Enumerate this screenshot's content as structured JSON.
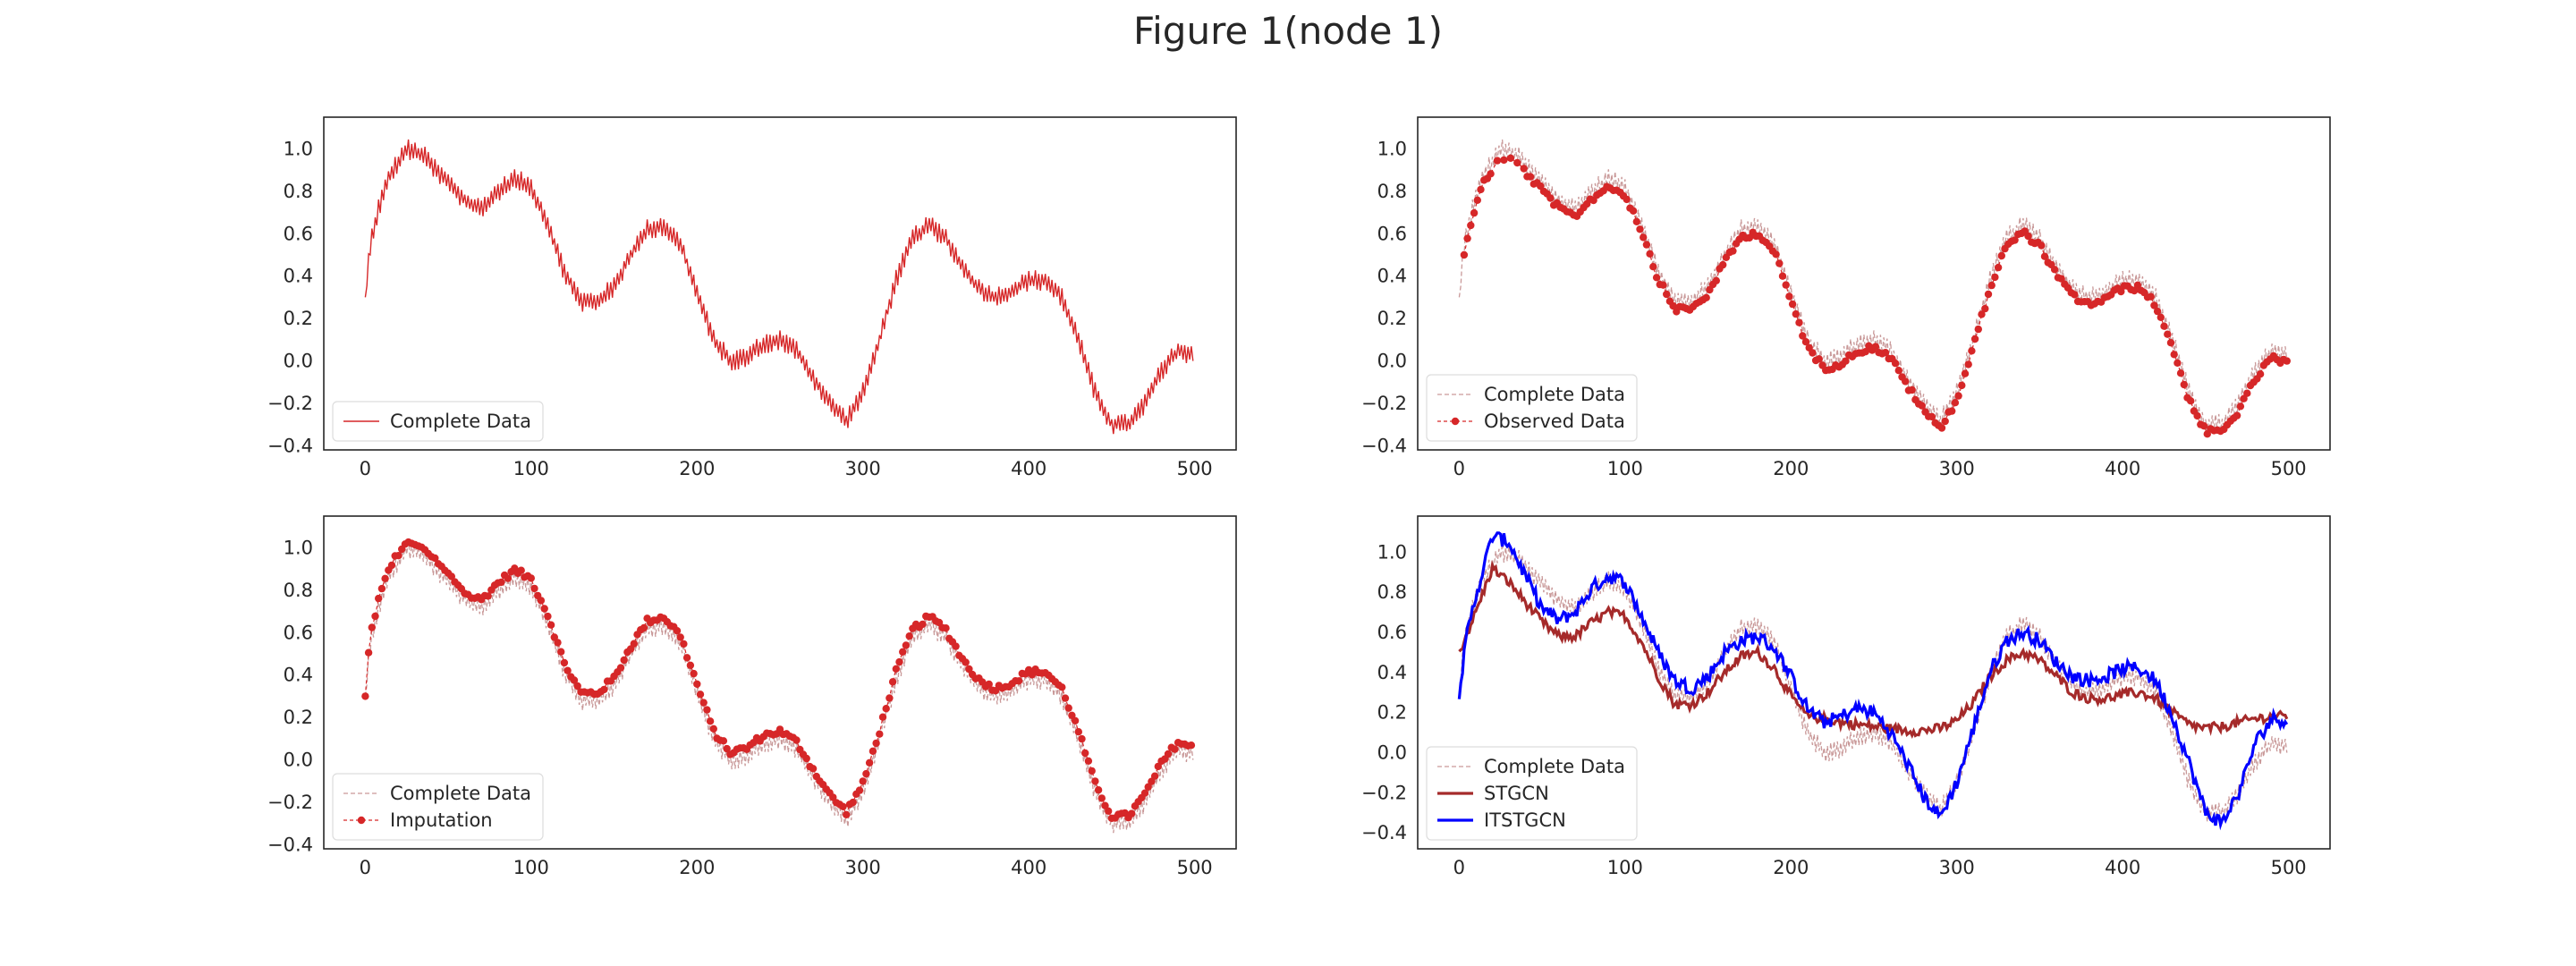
{
  "figure_title": "Figure 1(node 1)",
  "colors": {
    "complete_red": "#d62728",
    "observed_red": "#d62728",
    "imputation_red": "#d62728",
    "complete_dashed": "#c99999",
    "stgcn": "#a52a2a",
    "itstgcn": "#0000ff",
    "axes": "#262626"
  },
  "chart_data": [
    {
      "type": "line",
      "panel": "top-left",
      "xlim": [
        -25,
        525
      ],
      "ylim": [
        -0.42,
        1.15
      ],
      "xticks": [
        0,
        100,
        200,
        300,
        400,
        500
      ],
      "yticks": [
        -0.4,
        -0.2,
        0.0,
        0.2,
        0.4,
        0.6,
        0.8,
        1.0
      ],
      "xtick_labels": [
        "0",
        "100",
        "200",
        "300",
        "400",
        "500"
      ],
      "ytick_labels": [
        "−0.4",
        "−0.2",
        "0.0",
        "0.2",
        "0.4",
        "0.6",
        "0.8",
        "1.0"
      ],
      "legend_position": "lower-left",
      "series": [
        {
          "name": "Complete Data",
          "style": "solid-thin",
          "role": "complete"
        }
      ]
    },
    {
      "type": "line",
      "panel": "top-right",
      "xlim": [
        -25,
        525
      ],
      "ylim": [
        -0.42,
        1.15
      ],
      "xticks": [
        0,
        100,
        200,
        300,
        400,
        500
      ],
      "yticks": [
        -0.4,
        -0.2,
        0.0,
        0.2,
        0.4,
        0.6,
        0.8,
        1.0
      ],
      "xtick_labels": [
        "0",
        "100",
        "200",
        "300",
        "400",
        "500"
      ],
      "ytick_labels": [
        "−0.4",
        "−0.2",
        "0.0",
        "0.2",
        "0.4",
        "0.6",
        "0.8",
        "1.0"
      ],
      "legend_position": "lower-left",
      "series": [
        {
          "name": "Complete Data",
          "style": "dashed-light",
          "role": "complete"
        },
        {
          "name": "Observed Data",
          "style": "markers-dashed",
          "role": "observed"
        }
      ]
    },
    {
      "type": "line",
      "panel": "bottom-left",
      "xlim": [
        -25,
        525
      ],
      "ylim": [
        -0.42,
        1.15
      ],
      "xticks": [
        0,
        100,
        200,
        300,
        400,
        500
      ],
      "yticks": [
        -0.4,
        -0.2,
        0.0,
        0.2,
        0.4,
        0.6,
        0.8,
        1.0
      ],
      "xtick_labels": [
        "0",
        "100",
        "200",
        "300",
        "400",
        "500"
      ],
      "ytick_labels": [
        "−0.4",
        "−0.2",
        "0.0",
        "0.2",
        "0.4",
        "0.6",
        "0.8",
        "1.0"
      ],
      "legend_position": "lower-left",
      "series": [
        {
          "name": "Complete Data",
          "style": "dashed-light",
          "role": "complete"
        },
        {
          "name": "Imputation",
          "style": "markers-dashed",
          "role": "imputation"
        }
      ]
    },
    {
      "type": "line",
      "panel": "bottom-right",
      "xlim": [
        -25,
        525
      ],
      "ylim": [
        -0.48,
        1.18
      ],
      "xticks": [
        0,
        100,
        200,
        300,
        400,
        500
      ],
      "yticks": [
        -0.4,
        -0.2,
        0.0,
        0.2,
        0.4,
        0.6,
        0.8,
        1.0
      ],
      "xtick_labels": [
        "0",
        "100",
        "200",
        "300",
        "400",
        "500"
      ],
      "ytick_labels": [
        "−0.4",
        "−0.2",
        "0.0",
        "0.2",
        "0.4",
        "0.6",
        "0.8",
        "1.0"
      ],
      "legend_position": "lower-left",
      "series": [
        {
          "name": "Complete Data",
          "style": "dashed-light",
          "role": "complete"
        },
        {
          "name": "STGCN",
          "style": "solid-thick",
          "role": "stgcn"
        },
        {
          "name": "ITSTGCN",
          "style": "solid-thick",
          "role": "itstgcn"
        }
      ]
    }
  ],
  "signal": {
    "x_max": 499,
    "complete_keypoints": [
      [
        0,
        0.3
      ],
      [
        3,
        0.55
      ],
      [
        8,
        0.72
      ],
      [
        15,
        0.88
      ],
      [
        25,
        1.0
      ],
      [
        35,
        0.97
      ],
      [
        45,
        0.88
      ],
      [
        55,
        0.8
      ],
      [
        62,
        0.74
      ],
      [
        70,
        0.72
      ],
      [
        80,
        0.8
      ],
      [
        90,
        0.86
      ],
      [
        100,
        0.82
      ],
      [
        110,
        0.65
      ],
      [
        120,
        0.42
      ],
      [
        130,
        0.28
      ],
      [
        140,
        0.28
      ],
      [
        150,
        0.35
      ],
      [
        160,
        0.5
      ],
      [
        170,
        0.62
      ],
      [
        180,
        0.64
      ],
      [
        190,
        0.55
      ],
      [
        200,
        0.32
      ],
      [
        210,
        0.1
      ],
      [
        220,
        0.0
      ],
      [
        230,
        0.02
      ],
      [
        240,
        0.08
      ],
      [
        250,
        0.1
      ],
      [
        260,
        0.05
      ],
      [
        270,
        -0.08
      ],
      [
        280,
        -0.2
      ],
      [
        290,
        -0.28
      ],
      [
        300,
        -0.15
      ],
      [
        310,
        0.1
      ],
      [
        320,
        0.38
      ],
      [
        330,
        0.58
      ],
      [
        340,
        0.64
      ],
      [
        350,
        0.58
      ],
      [
        360,
        0.44
      ],
      [
        370,
        0.34
      ],
      [
        380,
        0.3
      ],
      [
        390,
        0.33
      ],
      [
        400,
        0.38
      ],
      [
        410,
        0.38
      ],
      [
        420,
        0.3
      ],
      [
        430,
        0.1
      ],
      [
        440,
        -0.15
      ],
      [
        450,
        -0.3
      ],
      [
        460,
        -0.3
      ],
      [
        470,
        -0.2
      ],
      [
        480,
        -0.05
      ],
      [
        490,
        0.05
      ],
      [
        499,
        0.02
      ]
    ],
    "stgcn_keypoints": [
      [
        0,
        0.5
      ],
      [
        10,
        0.7
      ],
      [
        20,
        0.92
      ],
      [
        30,
        0.85
      ],
      [
        40,
        0.75
      ],
      [
        50,
        0.65
      ],
      [
        60,
        0.58
      ],
      [
        70,
        0.58
      ],
      [
        80,
        0.65
      ],
      [
        90,
        0.7
      ],
      [
        100,
        0.68
      ],
      [
        110,
        0.55
      ],
      [
        120,
        0.38
      ],
      [
        130,
        0.24
      ],
      [
        140,
        0.24
      ],
      [
        150,
        0.3
      ],
      [
        160,
        0.4
      ],
      [
        170,
        0.48
      ],
      [
        180,
        0.5
      ],
      [
        190,
        0.42
      ],
      [
        200,
        0.28
      ],
      [
        210,
        0.18
      ],
      [
        220,
        0.17
      ],
      [
        230,
        0.15
      ],
      [
        240,
        0.14
      ],
      [
        250,
        0.13
      ],
      [
        260,
        0.12
      ],
      [
        270,
        0.11
      ],
      [
        280,
        0.11
      ],
      [
        290,
        0.12
      ],
      [
        300,
        0.16
      ],
      [
        310,
        0.25
      ],
      [
        320,
        0.38
      ],
      [
        330,
        0.46
      ],
      [
        340,
        0.5
      ],
      [
        350,
        0.46
      ],
      [
        360,
        0.38
      ],
      [
        370,
        0.3
      ],
      [
        380,
        0.27
      ],
      [
        390,
        0.27
      ],
      [
        400,
        0.29
      ],
      [
        410,
        0.3
      ],
      [
        420,
        0.27
      ],
      [
        430,
        0.2
      ],
      [
        440,
        0.14
      ],
      [
        450,
        0.12
      ],
      [
        460,
        0.13
      ],
      [
        470,
        0.15
      ],
      [
        480,
        0.17
      ],
      [
        490,
        0.18
      ],
      [
        499,
        0.18
      ]
    ],
    "itstgcn_keypoints": [
      [
        0,
        0.3
      ],
      [
        5,
        0.6
      ],
      [
        10,
        0.78
      ],
      [
        20,
        1.08
      ],
      [
        30,
        1.05
      ],
      [
        40,
        0.88
      ],
      [
        50,
        0.72
      ],
      [
        60,
        0.66
      ],
      [
        70,
        0.7
      ],
      [
        80,
        0.82
      ],
      [
        90,
        0.88
      ],
      [
        100,
        0.85
      ],
      [
        110,
        0.68
      ],
      [
        120,
        0.5
      ],
      [
        130,
        0.36
      ],
      [
        140,
        0.32
      ],
      [
        150,
        0.38
      ],
      [
        160,
        0.5
      ],
      [
        170,
        0.56
      ],
      [
        180,
        0.58
      ],
      [
        190,
        0.52
      ],
      [
        200,
        0.38
      ],
      [
        210,
        0.22
      ],
      [
        220,
        0.15
      ],
      [
        230,
        0.18
      ],
      [
        240,
        0.22
      ],
      [
        250,
        0.2
      ],
      [
        260,
        0.1
      ],
      [
        270,
        -0.05
      ],
      [
        280,
        -0.22
      ],
      [
        290,
        -0.32
      ],
      [
        300,
        -0.15
      ],
      [
        310,
        0.12
      ],
      [
        320,
        0.4
      ],
      [
        330,
        0.56
      ],
      [
        340,
        0.6
      ],
      [
        350,
        0.56
      ],
      [
        360,
        0.45
      ],
      [
        370,
        0.38
      ],
      [
        380,
        0.36
      ],
      [
        390,
        0.38
      ],
      [
        400,
        0.42
      ],
      [
        410,
        0.42
      ],
      [
        420,
        0.36
      ],
      [
        430,
        0.18
      ],
      [
        440,
        -0.05
      ],
      [
        450,
        -0.3
      ],
      [
        460,
        -0.35
      ],
      [
        470,
        -0.2
      ],
      [
        480,
        0.05
      ],
      [
        490,
        0.17
      ],
      [
        499,
        0.16
      ]
    ]
  }
}
